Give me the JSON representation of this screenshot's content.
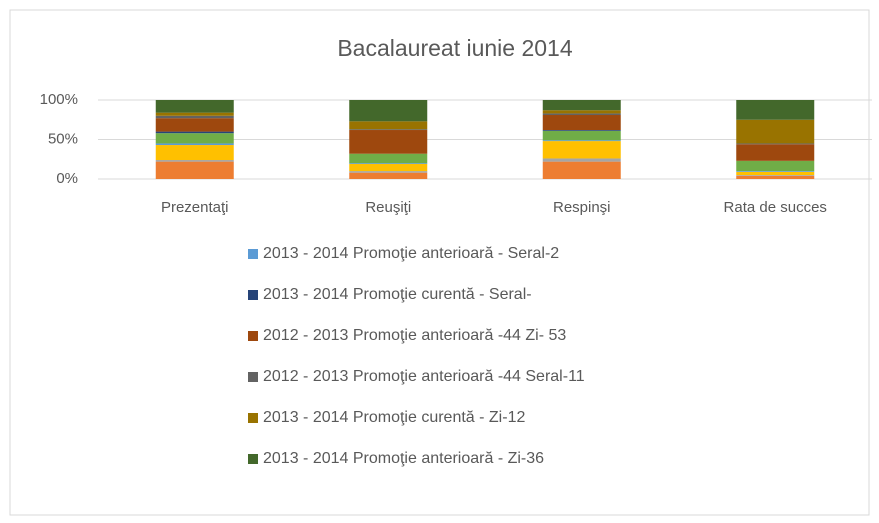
{
  "chart_data": {
    "type": "bar",
    "stacked": "percent",
    "title": "Bacalaureat iunie 2014",
    "categories": [
      "Prezentaţi",
      "Reuşiţi",
      "Respinşi",
      "Rata de succes"
    ],
    "ylim": [
      0,
      100
    ],
    "yticks": [
      {
        "value": 0,
        "label": "0%"
      },
      {
        "value": 50,
        "label": "50%"
      },
      {
        "value": 100,
        "label": "100%"
      }
    ],
    "grid": true,
    "series": [
      {
        "color": "#ed7d31",
        "values": [
          22,
          8,
          22,
          4
        ]
      },
      {
        "color": "#a5a5a5",
        "values": [
          2,
          2,
          4,
          1
        ]
      },
      {
        "color": "#ffc000",
        "values": [
          19,
          9,
          22,
          4
        ]
      },
      {
        "name": "2013 - 2014 Promoţie anterioară - Seral-2",
        "color": "#5b9bd5",
        "values": [
          2,
          1,
          1,
          1
        ]
      },
      {
        "color": "#70ad47",
        "values": [
          13,
          12,
          12,
          13
        ]
      },
      {
        "name": "2013 - 2014 Promoţie curentă - Seral-",
        "color": "#264478",
        "values": [
          2,
          0,
          1,
          0
        ]
      },
      {
        "name": "2012 - 2013 Promoţie anterioară -44 Zi- 53",
        "color": "#9e480e",
        "values": [
          17,
          30,
          19,
          21
        ]
      },
      {
        "name": "2012 - 2013 Promoţie anterioară -44 Seral-11",
        "color": "#636363",
        "values": [
          3,
          1,
          2,
          1
        ]
      },
      {
        "name": "2013 - 2014 Promoţie curentă - Zi-12",
        "color": "#997300",
        "values": [
          4,
          10,
          4,
          30
        ]
      },
      {
        "name": "2013 - 2014 Promoţie anterioară - Zi-36",
        "color": "#43682b",
        "values": [
          16,
          27,
          13,
          25
        ]
      }
    ]
  }
}
